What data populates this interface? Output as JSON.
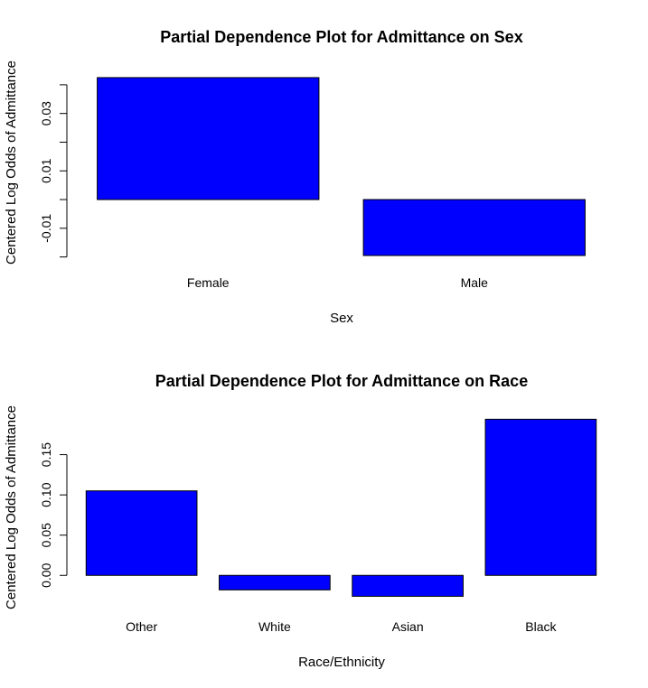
{
  "chart_data": [
    {
      "type": "bar",
      "title": "Partial Dependence Plot for Admittance on Sex",
      "xlabel": "Sex",
      "ylabel": "Centered Log Odds of Admittance",
      "categories": [
        "Female",
        "Male"
      ],
      "values": [
        0.0425,
        -0.0195
      ],
      "ylim": [
        -0.015,
        0.045
      ],
      "yticks": [
        -0.02,
        -0.01,
        0.0,
        0.01,
        0.02,
        0.03,
        0.04
      ],
      "ytick_labels": [
        "",
        "-0.01",
        "",
        "0.01",
        "",
        "0.03",
        ""
      ],
      "bar_color": "#0000FF",
      "grid": false
    },
    {
      "type": "bar",
      "title": "Partial Dependence Plot for Admittance on Race",
      "xlabel": "Race/Ethnicity",
      "ylabel": "Centered Log Odds of Admittance",
      "categories": [
        "Other",
        "White",
        "Asian",
        "Black"
      ],
      "values": [
        0.105,
        -0.018,
        -0.026,
        0.194
      ],
      "ylim": [
        -0.03,
        0.2
      ],
      "yticks": [
        0.0,
        0.05,
        0.1,
        0.15
      ],
      "ytick_labels": [
        "0.00",
        "0.05",
        "0.10",
        "0.15"
      ],
      "bar_color": "#0000FF",
      "grid": false
    }
  ]
}
